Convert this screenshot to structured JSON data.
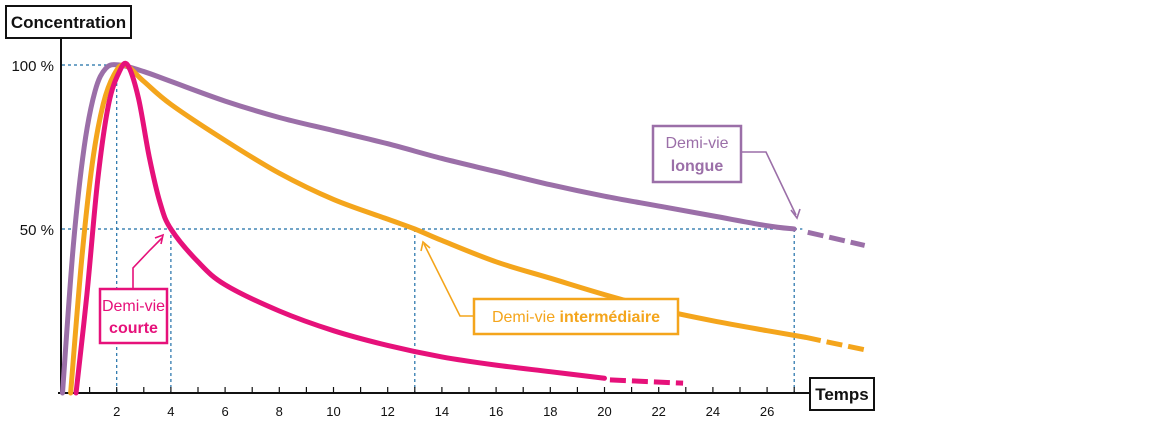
{
  "chart_data": {
    "type": "line",
    "xlabel": "Temps",
    "ylabel": "Concentration",
    "xlim": [
      0,
      28
    ],
    "ylim": [
      0,
      100
    ],
    "x_ticks": [
      2,
      4,
      6,
      8,
      10,
      12,
      14,
      16,
      18,
      20,
      22,
      24,
      26
    ],
    "y_ticks": [
      {
        "value": 100,
        "label": "100 %"
      },
      {
        "value": 50,
        "label": "50 %"
      }
    ],
    "grid": false,
    "series": [
      {
        "name": "Demi-vie longue",
        "color": "#9b6fa8",
        "peak_x": 2.1,
        "half_life_x": 27,
        "x": [
          0,
          0.4,
          0.8,
          1.2,
          1.6,
          2.1,
          3,
          4,
          6,
          8,
          10,
          12,
          14,
          16,
          18,
          20,
          22,
          24,
          26,
          27
        ],
        "y": [
          0,
          45,
          75,
          92,
          99,
          100,
          98,
          95,
          89,
          84,
          80,
          76,
          71.5,
          67.5,
          63.5,
          60,
          57,
          54,
          51,
          50
        ],
        "dashed_x": [
          27.5,
          29.6
        ],
        "dashed_y": [
          49,
          45
        ]
      },
      {
        "name": "Demi-vie intermédiaire",
        "color": "#f4a51c",
        "peak_x": 2.3,
        "half_life_x": 13,
        "x": [
          0.3,
          0.7,
          1.1,
          1.5,
          1.9,
          2.3,
          3,
          4,
          6,
          8,
          10,
          12,
          13,
          14,
          16,
          18,
          20,
          22,
          24,
          26,
          27.4
        ],
        "y": [
          0,
          40,
          70,
          88,
          97,
          100,
          95,
          88,
          77,
          67,
          59,
          53,
          50,
          46.5,
          40,
          35,
          30,
          25.5,
          22,
          19,
          17
        ],
        "dashed_x": [
          27.4,
          29.7
        ],
        "dashed_y": [
          17,
          13
        ]
      },
      {
        "name": "Demi-vie courte",
        "color": "#e6117a",
        "peak_x": 2.4,
        "half_life_x": 4,
        "x": [
          0.5,
          0.9,
          1.3,
          1.7,
          2.1,
          2.4,
          2.8,
          3.2,
          3.6,
          4,
          5,
          6,
          8,
          10,
          12,
          14,
          16,
          18,
          20
        ],
        "y": [
          0,
          30,
          65,
          88,
          98,
          100,
          90,
          72,
          58,
          50,
          40,
          33,
          25,
          19,
          14.5,
          11,
          8.5,
          6.5,
          4.5
        ],
        "dashed_x": [
          20.2,
          22.9
        ],
        "dashed_y": [
          4,
          3
        ]
      }
    ],
    "annotations": {
      "short": {
        "line1": "Demi-vie",
        "line2": "courte"
      },
      "mid": {
        "line1": "Demi-vie ",
        "line2": "intermédiaire"
      },
      "long": {
        "line1": "Demi-vie",
        "line2": "longue"
      }
    }
  }
}
